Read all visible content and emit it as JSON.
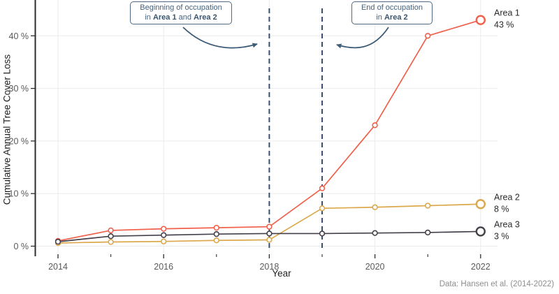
{
  "axis": {
    "x_title": "Year",
    "y_title": "Cumulative Annual Tree Cover Loss"
  },
  "caption": "Data: Hansen et al. (2014-2022)",
  "annotations": {
    "box1": {
      "line1": "Beginning of occupation",
      "line2_prefix": "in ",
      "line2_bold1": "Area 1",
      "line2_mid": " and ",
      "line2_bold2": "Area 2"
    },
    "box2": {
      "line1": "End of occupation",
      "line2_prefix": "in ",
      "line2_bold1": "Area 2"
    }
  },
  "chart_data": {
    "type": "line",
    "title": "",
    "xlabel": "Year",
    "ylabel": "Cumulative Annual Tree Cover Loss",
    "x": [
      2014,
      2015,
      2016,
      2017,
      2018,
      2019,
      2020,
      2021,
      2022
    ],
    "xlim": [
      2013.6,
      2022.3
    ],
    "ylim": [
      0,
      46
    ],
    "grid": true,
    "series": [
      {
        "name": "Area 1",
        "color": "#F0604A",
        "values": [
          1.0,
          3.0,
          3.3,
          3.5,
          3.7,
          11.0,
          23.0,
          40.0,
          43.0
        ],
        "end_label": "Area 1",
        "end_value_label": "43 %"
      },
      {
        "name": "Area 2",
        "color": "#DCA84C",
        "values": [
          0.6,
          0.8,
          0.9,
          1.1,
          1.2,
          7.2,
          7.4,
          7.7,
          8.0
        ],
        "end_label": "Area 2",
        "end_value_label": "8 %"
      },
      {
        "name": "Area 3",
        "color": "#45404A",
        "values": [
          0.85,
          1.9,
          2.1,
          2.3,
          2.4,
          2.4,
          2.5,
          2.6,
          2.8
        ],
        "end_label": "Area 3",
        "end_value_label": "3 %"
      }
    ],
    "y_ticks": [
      {
        "value": 0,
        "label": "0 %"
      },
      {
        "value": 10,
        "label": "10 %"
      },
      {
        "value": 20,
        "label": "20 %"
      },
      {
        "value": 30,
        "label": "30 %"
      },
      {
        "value": 40,
        "label": "40 %"
      }
    ],
    "x_major_ticks": [
      {
        "value": 2014,
        "label": "2014"
      },
      {
        "value": 2016,
        "label": "2016"
      },
      {
        "value": 2018,
        "label": "2018"
      },
      {
        "value": 2020,
        "label": "2020"
      },
      {
        "value": 2022,
        "label": "2022"
      }
    ],
    "x_minor_ticks": [
      2015,
      2017,
      2019,
      2021
    ],
    "vlines": [
      {
        "x": 2018,
        "note": "Beginning of occupation in Area 1 and Area 2"
      },
      {
        "x": 2019,
        "note": "End of occupation in Area 2"
      }
    ],
    "colors": {
      "grid": "#EBEBEB",
      "axis": "#2D2D2D",
      "tick_label": "#5A5A5A",
      "vline": "#2C4A6B",
      "annotation": "#47627B",
      "end_label": "#2B2B2B"
    }
  }
}
